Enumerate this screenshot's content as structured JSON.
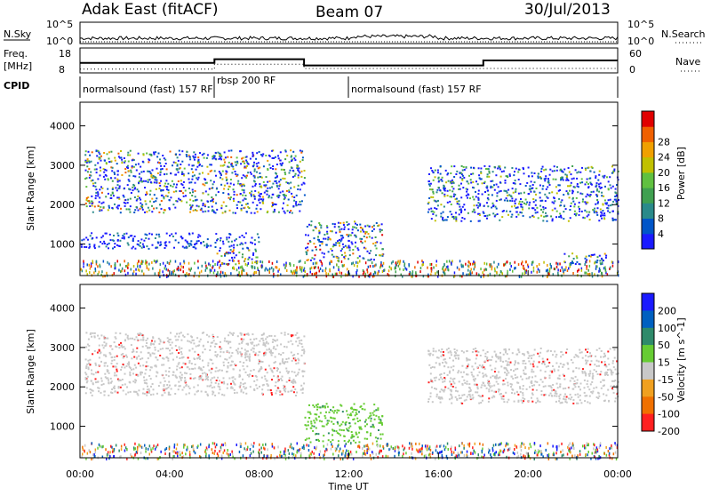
{
  "header": {
    "radar": "Adak East (fitACF)",
    "beam": "Beam 07",
    "date": "30/Jul/2013"
  },
  "top_panel": {
    "left_label": "N.Sky",
    "left_ticks": [
      "10^5",
      "10^0"
    ],
    "right_label": "N.Search",
    "right_ticks": [
      "10^5",
      "10^0"
    ]
  },
  "freq_panel": {
    "left_label_1": "Freq.",
    "left_label_2": "[MHz]",
    "left_ticks": [
      "18",
      "8"
    ],
    "right_label": "Nave",
    "right_ticks": [
      "60",
      "0"
    ]
  },
  "cpid_panel": {
    "label": "CPID",
    "modes": [
      {
        "name": "normalsound (fast) 157 RF",
        "start_hour": 0,
        "end_hour": 6
      },
      {
        "name": "rbsp 200 RF",
        "start_hour": 6,
        "end_hour": 12
      },
      {
        "name": "normalsound (fast) 157 RF",
        "start_hour": 12,
        "end_hour": 24
      }
    ]
  },
  "chart_data": [
    {
      "type": "heatmap",
      "name": "power",
      "ylabel": "Slant Range [km]",
      "y_ticks": [
        "1000",
        "2000",
        "3000",
        "4000"
      ],
      "ylim": [
        200,
        4600
      ],
      "colorbar_label": "Power [dB]",
      "colorbar_ticks": [
        "4",
        "8",
        "12",
        "16",
        "20",
        "24",
        "28"
      ],
      "colorbar_colors": [
        "#1a1aff",
        "#0055c8",
        "#2a8a8a",
        "#3fa050",
        "#60c040",
        "#c0c000",
        "#f0a000",
        "#f06000",
        "#e00000"
      ],
      "features": [
        {
          "description": "band",
          "start_hour": 0.2,
          "end_hour": 10.0,
          "range_km": [
            1800,
            3400
          ],
          "peak_db": 24
        },
        {
          "description": "band",
          "start_hour": 0.0,
          "end_hour": 8.0,
          "range_km": [
            900,
            1300
          ],
          "peak_db": 8
        },
        {
          "description": "enhanced",
          "start_hour": 10.0,
          "end_hour": 13.5,
          "range_km": [
            600,
            1600
          ],
          "peak_db": 28
        },
        {
          "description": "enhanced",
          "start_hour": 6.0,
          "end_hour": 8.0,
          "range_km": [
            500,
            900
          ],
          "peak_db": 28
        },
        {
          "description": "band",
          "start_hour": 15.5,
          "end_hour": 24.0,
          "range_km": [
            1600,
            3000
          ],
          "peak_db": 16
        },
        {
          "description": "enhanced",
          "start_hour": 21.5,
          "end_hour": 23.5,
          "range_km": [
            500,
            800
          ],
          "peak_db": 20
        }
      ]
    },
    {
      "type": "heatmap",
      "name": "velocity",
      "xlabel": "Time UT",
      "x_ticks": [
        "00:00",
        "04:00",
        "08:00",
        "12:00",
        "16:00",
        "20:00",
        "00:00"
      ],
      "ylabel": "Slant Range [km]",
      "y_ticks": [
        "1000",
        "2000",
        "3000",
        "4000"
      ],
      "ylim": [
        200,
        4600
      ],
      "colorbar_label": "Velocity [m s^-1]",
      "colorbar_ticks": [
        "200",
        "100",
        "50",
        "15",
        "-15",
        "-50",
        "-100",
        "-200"
      ],
      "colorbar_colors": [
        "#1a1aff",
        "#0060c0",
        "#2e8a6a",
        "#66cc33",
        "#c8c8c8",
        "#f0a020",
        "#f07000",
        "#ff2020"
      ],
      "features": [
        {
          "description": "ground scatter band",
          "start_hour": 0.2,
          "end_hour": 10.0,
          "range_km": [
            1800,
            3400
          ],
          "velocity": 0
        },
        {
          "description": "positive velocity",
          "start_hour": 10.0,
          "end_hour": 13.5,
          "range_km": [
            600,
            1600
          ],
          "velocity": 50
        },
        {
          "description": "ground scatter",
          "start_hour": 15.5,
          "end_hour": 24.0,
          "range_km": [
            1600,
            3000
          ],
          "velocity": 0
        }
      ]
    }
  ]
}
